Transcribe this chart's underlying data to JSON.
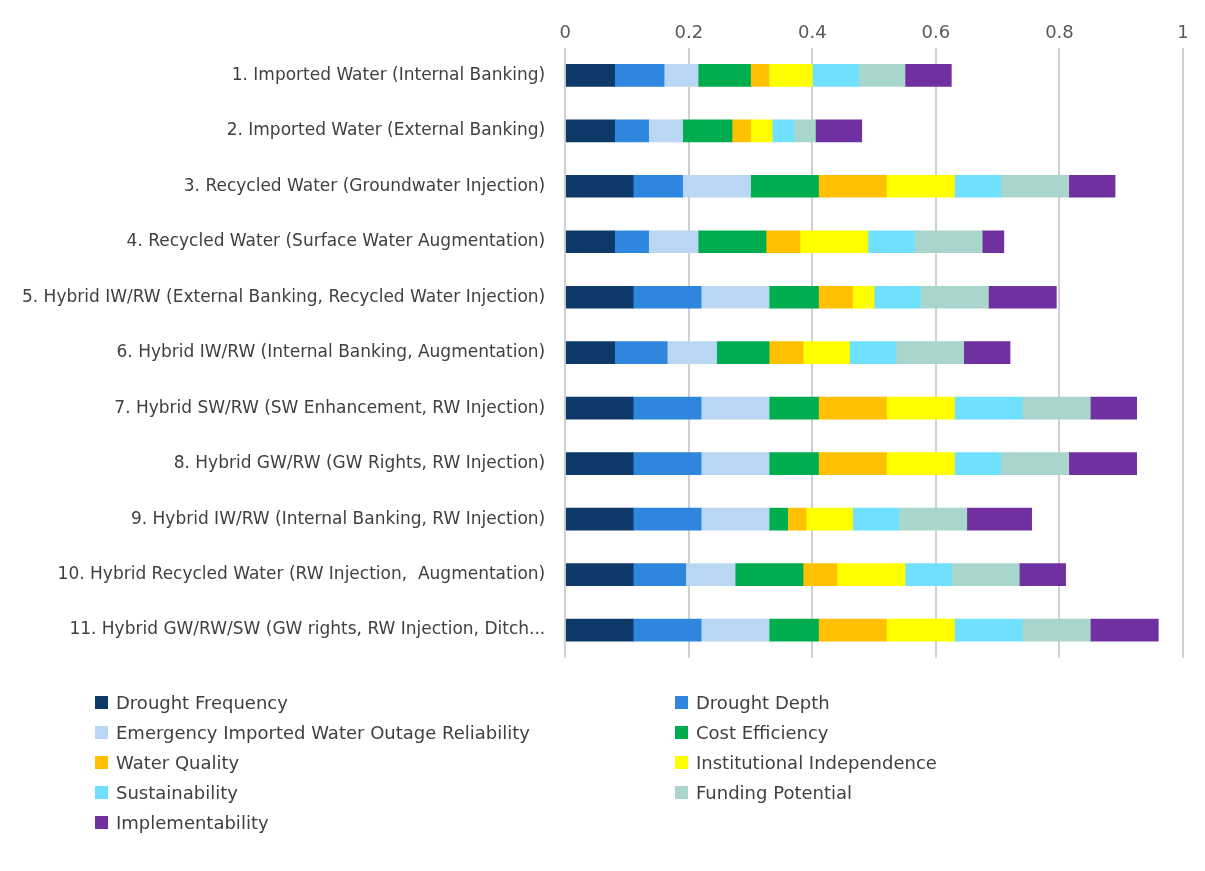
{
  "chart_data": {
    "type": "bar",
    "orientation": "horizontal",
    "stacked": true,
    "categories": [
      "1. Imported Water (Internal Banking)",
      "2. Imported Water (External Banking)",
      "3. Recycled Water (Groundwater Injection)",
      "4. Recycled Water (Surface Water Augmentation)",
      "5. Hybrid IW/RW (External Banking, Recycled Water Injection)",
      "6. Hybrid IW/RW (Internal Banking, Augmentation)",
      "7. Hybrid SW/RW (SW Enhancement, RW Injection)",
      "8. Hybrid GW/RW (GW Rights, RW Injection)",
      "9. Hybrid IW/RW (Internal Banking, RW Injection)",
      "10. Hybrid Recycled Water (RW Injection,  Augmentation)",
      "11. Hybrid GW/RW/SW (GW rights, RW Injection, Ditch..."
    ],
    "series": [
      {
        "name": "Drought Frequency",
        "color": "#0e3a6a",
        "values": [
          0.08,
          0.08,
          0.11,
          0.08,
          0.11,
          0.08,
          0.11,
          0.11,
          0.11,
          0.11,
          0.11
        ]
      },
      {
        "name": "Drought Depth",
        "color": "#2e86de",
        "values": [
          0.08,
          0.055,
          0.08,
          0.055,
          0.11,
          0.085,
          0.11,
          0.11,
          0.11,
          0.085,
          0.11
        ]
      },
      {
        "name": "Emergency Imported Water Outage Reliability",
        "color": "#b9d6f2",
        "values": [
          0.055,
          0.055,
          0.11,
          0.08,
          0.11,
          0.08,
          0.11,
          0.11,
          0.11,
          0.08,
          0.11
        ]
      },
      {
        "name": "Cost Efficiency",
        "color": "#00ad4e",
        "values": [
          0.085,
          0.08,
          0.11,
          0.11,
          0.08,
          0.085,
          0.08,
          0.08,
          0.03,
          0.11,
          0.08
        ]
      },
      {
        "name": "Water Quality",
        "color": "#ffc000",
        "values": [
          0.03,
          0.03,
          0.11,
          0.055,
          0.055,
          0.055,
          0.11,
          0.11,
          0.03,
          0.055,
          0.11
        ]
      },
      {
        "name": "Institutional Independence",
        "color": "#ffff00",
        "values": [
          0.07,
          0.035,
          0.11,
          0.11,
          0.035,
          0.075,
          0.11,
          0.11,
          0.075,
          0.11,
          0.11
        ]
      },
      {
        "name": "Sustainability",
        "color": "#70e0ff",
        "values": [
          0.075,
          0.035,
          0.075,
          0.075,
          0.075,
          0.075,
          0.11,
          0.075,
          0.075,
          0.075,
          0.11
        ]
      },
      {
        "name": "Funding Potential",
        "color": "#a8d5cc",
        "values": [
          0.075,
          0.035,
          0.11,
          0.11,
          0.11,
          0.11,
          0.11,
          0.11,
          0.11,
          0.11,
          0.11
        ]
      },
      {
        "name": "Implementability",
        "color": "#7030a0",
        "values": [
          0.075,
          0.075,
          0.075,
          0.035,
          0.11,
          0.075,
          0.075,
          0.11,
          0.105,
          0.075,
          0.11
        ]
      }
    ],
    "xlim": [
      0,
      1
    ],
    "xticks": [
      0,
      0.2,
      0.4,
      0.6,
      0.8,
      1
    ],
    "grid": "x",
    "legend": "bottom"
  }
}
